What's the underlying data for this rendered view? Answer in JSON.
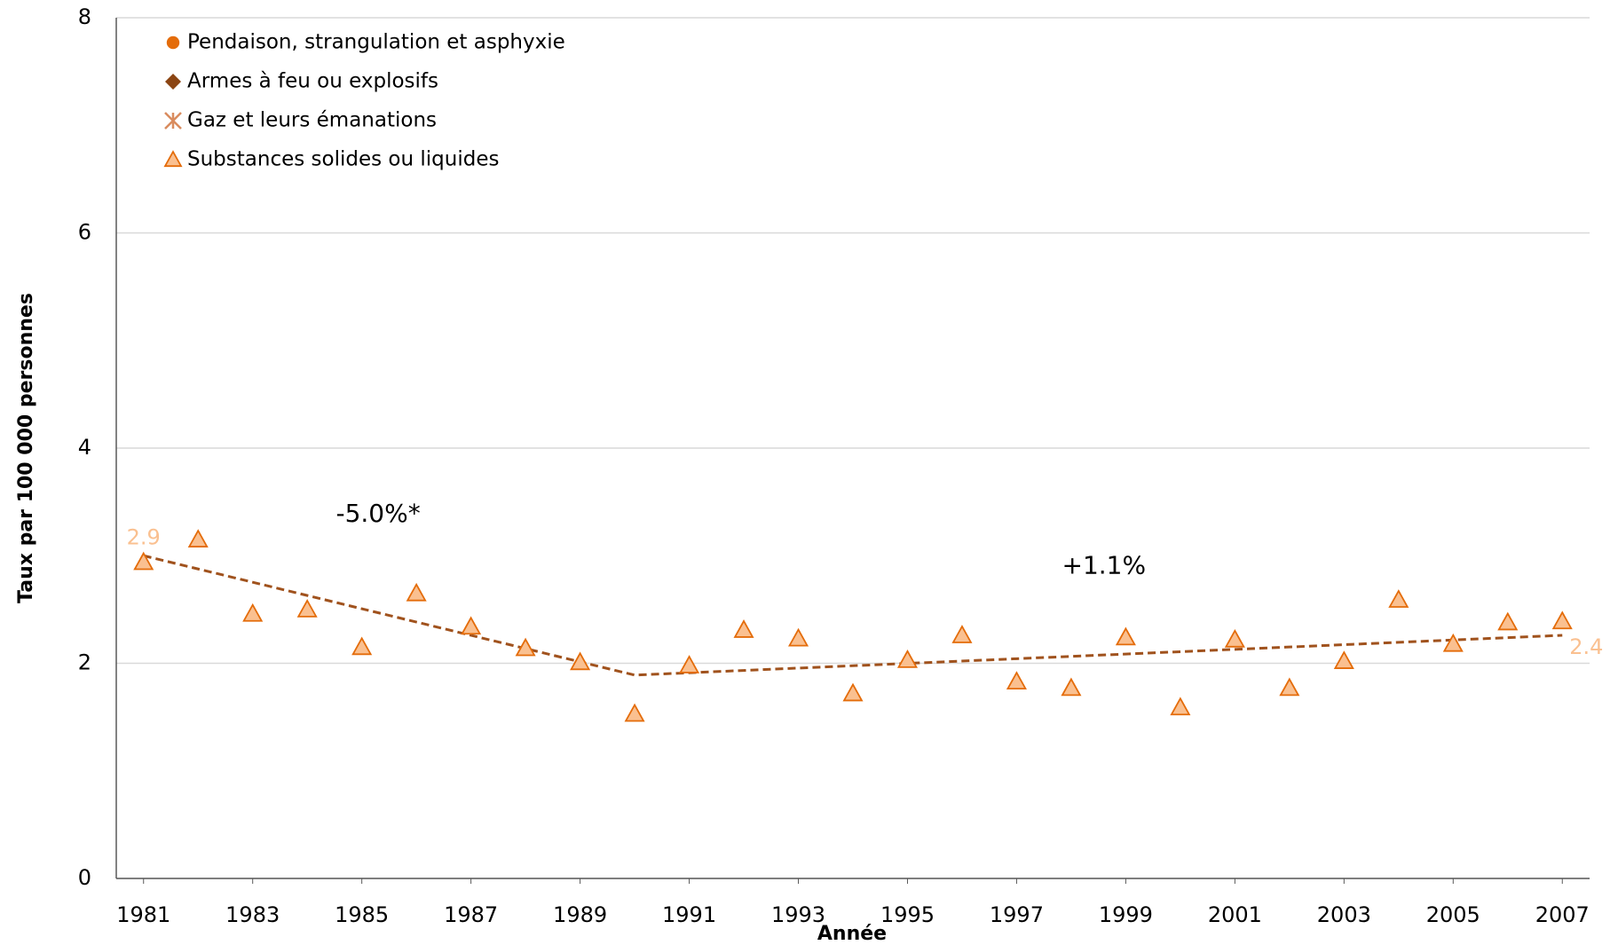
{
  "chart_data": {
    "type": "scatter",
    "x_label": "Année",
    "y_label": "Taux par 100 000 personnes",
    "x": [
      1981,
      1982,
      1983,
      1984,
      1985,
      1986,
      1987,
      1988,
      1989,
      1990,
      1991,
      1992,
      1993,
      1994,
      1995,
      1996,
      1997,
      1998,
      1999,
      2000,
      2001,
      2002,
      2003,
      2004,
      2005,
      2006,
      2007
    ],
    "series": [
      {
        "name": "Pendaison, strangulation et asphyxie",
        "color": "#e46c0a",
        "marker": "circle",
        "values": []
      },
      {
        "name": "Armes à feu ou explosifs",
        "color": "#8b4513",
        "marker": "diamond",
        "values": []
      },
      {
        "name": "Gaz et leurs émanations",
        "color": "#d98c5f",
        "marker": "asterisk",
        "values": []
      },
      {
        "name": "Substances solides ou liquides",
        "color": "#fac090",
        "stroke": "#e46c0a",
        "marker": "triangle",
        "label_color": "#fac090",
        "values": [
          2.94,
          3.15,
          2.46,
          2.5,
          2.15,
          2.65,
          2.34,
          2.14,
          2.01,
          1.53,
          1.98,
          2.31,
          2.23,
          1.72,
          2.03,
          2.26,
          1.83,
          1.77,
          2.24,
          1.59,
          2.22,
          1.77,
          2.02,
          2.59,
          2.18,
          2.38,
          2.39
        ],
        "value_labels": [
          "2.9",
          null,
          null,
          null,
          null,
          null,
          null,
          null,
          null,
          null,
          null,
          null,
          null,
          null,
          null,
          null,
          null,
          null,
          null,
          null,
          null,
          null,
          null,
          null,
          null,
          null,
          "2.4"
        ]
      }
    ],
    "trend": {
      "color": "#a0521d",
      "x": [
        1981,
        1990,
        2007
      ],
      "values": [
        3.0,
        1.89,
        2.26
      ]
    },
    "annotations": [
      "-5.0%*",
      "+1.1%"
    ],
    "xlim": [
      1980.5,
      2007.5
    ],
    "xticks": [
      1981,
      1983,
      1985,
      1987,
      1989,
      1991,
      1993,
      1995,
      1997,
      1999,
      2001,
      2003,
      2005,
      2007
    ],
    "ylim": [
      0,
      8
    ],
    "yticks": [
      0,
      2,
      4,
      6,
      8
    ],
    "grid": true,
    "legend": "top-left"
  }
}
